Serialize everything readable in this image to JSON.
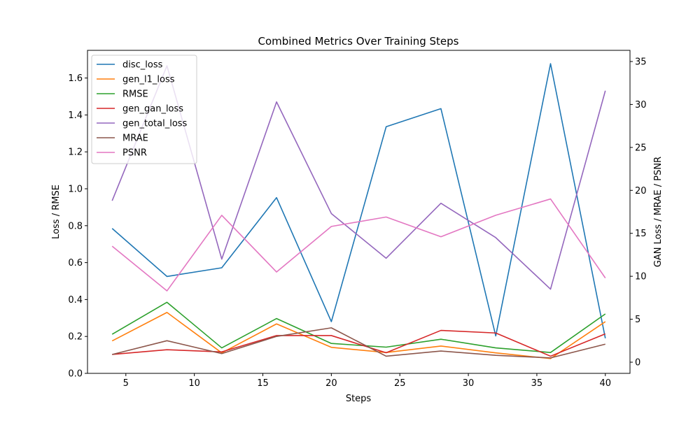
{
  "chart_data": {
    "type": "line",
    "title": "Combined Metrics Over Training Steps",
    "xlabel": "Steps",
    "ylabel_left": "Loss / RMSE",
    "ylabel_right": "GAN Loss / MRAE / PSNR",
    "x": [
      4,
      8,
      12,
      16,
      20,
      24,
      28,
      32,
      36,
      40
    ],
    "xlim": [
      2.2,
      41.8
    ],
    "ylim_left": [
      0,
      1.75
    ],
    "ylim_right": [
      -1.3,
      36.3
    ],
    "xticks": [
      5,
      10,
      15,
      20,
      25,
      30,
      35,
      40
    ],
    "yticks_left": [
      0.0,
      0.2,
      0.4,
      0.6,
      0.8,
      1.0,
      1.2,
      1.4,
      1.6
    ],
    "yticks_right": [
      0,
      5,
      10,
      15,
      20,
      25,
      30,
      35
    ],
    "grid": false,
    "legend_position": "top-left",
    "series": [
      {
        "name": "disc_loss",
        "axis": "left",
        "color": "#1f77b4",
        "values": [
          0.785,
          0.525,
          0.572,
          0.952,
          0.28,
          1.336,
          1.434,
          0.203,
          1.678,
          0.19
        ]
      },
      {
        "name": "gen_l1_loss",
        "axis": "left",
        "color": "#ff7f0e",
        "values": [
          0.176,
          0.33,
          0.111,
          0.268,
          0.141,
          0.113,
          0.148,
          0.111,
          0.08,
          0.28
        ]
      },
      {
        "name": "RMSE",
        "axis": "left",
        "color": "#2ca02c",
        "values": [
          0.212,
          0.385,
          0.138,
          0.297,
          0.162,
          0.142,
          0.185,
          0.138,
          0.113,
          0.322
        ]
      },
      {
        "name": "gen_gan_loss",
        "axis": "right",
        "color": "#d62728",
        "values": [
          0.9,
          1.45,
          1.2,
          3.1,
          3.1,
          1.1,
          3.7,
          3.4,
          0.7,
          3.3
        ]
      },
      {
        "name": "gen_total_loss",
        "axis": "right",
        "color": "#9467bd",
        "values": [
          18.8,
          34.5,
          12.0,
          30.3,
          17.3,
          12.1,
          18.5,
          14.5,
          8.5,
          31.6
        ]
      },
      {
        "name": "MRAE",
        "axis": "right",
        "color": "#8c564b",
        "values": [
          0.9,
          2.5,
          1.0,
          3.0,
          4.0,
          0.7,
          1.3,
          0.8,
          0.5,
          2.1
        ]
      },
      {
        "name": "PSNR",
        "axis": "right",
        "color": "#e377c2",
        "values": [
          13.5,
          8.3,
          17.1,
          10.5,
          15.8,
          16.9,
          14.6,
          17.1,
          19.0,
          9.8
        ]
      }
    ]
  }
}
